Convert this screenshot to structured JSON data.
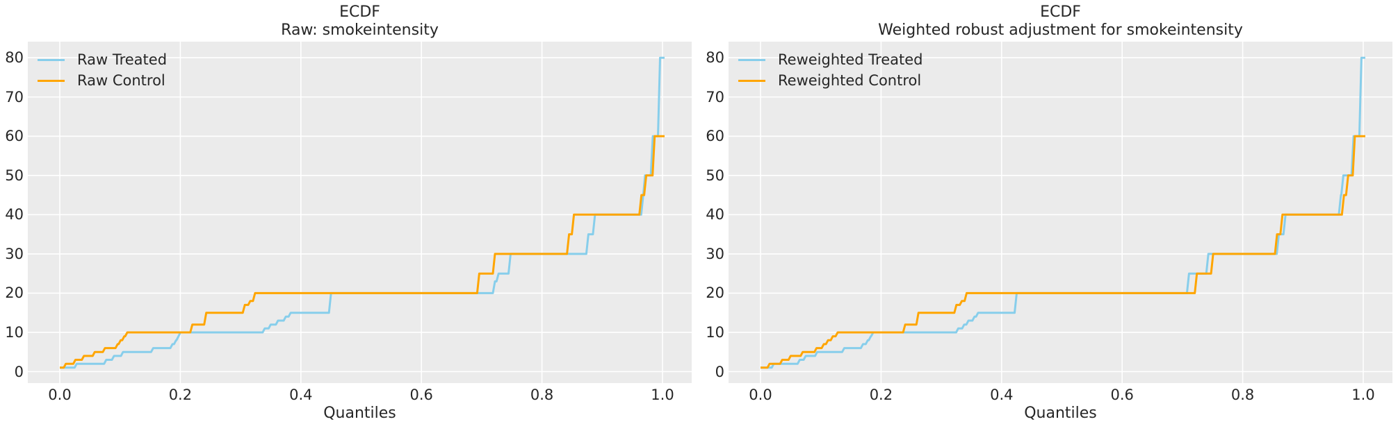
{
  "figure": {
    "background": "#ffffff",
    "plot_background": "#ebebeb",
    "grid_color": "#ffffff",
    "text_color": "#262626",
    "treated_color": "#87ceeb",
    "control_color": "#ffa500"
  },
  "chart_data": [
    {
      "type": "line",
      "subtype": "quantile-step-ecdf",
      "title": "ECDF",
      "subtitle": "Raw: smokeintensity",
      "xlabel": "Quantiles",
      "xlim": [
        -0.05,
        1.05
      ],
      "ylim": [
        -4,
        84
      ],
      "x_ticks": [
        0.0,
        0.2,
        0.4,
        0.6,
        0.8,
        1.0
      ],
      "x_tick_labels": [
        "0.0",
        "0.2",
        "0.4",
        "0.6",
        "0.8",
        "1.0"
      ],
      "y_ticks": [
        0,
        10,
        20,
        30,
        40,
        50,
        60,
        70,
        80
      ],
      "y_tick_labels": [
        "0",
        "10",
        "20",
        "30",
        "40",
        "50",
        "60",
        "70",
        "80"
      ],
      "grid": true,
      "legend_position": "upper-left",
      "series": [
        {
          "name": "Raw Treated",
          "color": "#87ceeb",
          "steps": [
            [
              0.0,
              1
            ],
            [
              0.028,
              2
            ],
            [
              0.077,
              3
            ],
            [
              0.09,
              4
            ],
            [
              0.105,
              5
            ],
            [
              0.155,
              6
            ],
            [
              0.187,
              7
            ],
            [
              0.193,
              8
            ],
            [
              0.197,
              9
            ],
            [
              0.2,
              10
            ],
            [
              0.34,
              11
            ],
            [
              0.35,
              12
            ],
            [
              0.362,
              13
            ],
            [
              0.375,
              14
            ],
            [
              0.383,
              15
            ],
            [
              0.45,
              20
            ],
            [
              0.722,
              23
            ],
            [
              0.728,
              25
            ],
            [
              0.748,
              30
            ],
            [
              0.877,
              35
            ],
            [
              0.888,
              40
            ],
            [
              0.968,
              45
            ],
            [
              0.971,
              50
            ],
            [
              0.984,
              60
            ],
            [
              0.996,
              80
            ]
          ]
        },
        {
          "name": "Raw Control",
          "color": "#ffa500",
          "steps": [
            [
              0.0,
              1
            ],
            [
              0.01,
              2
            ],
            [
              0.026,
              3
            ],
            [
              0.04,
              4
            ],
            [
              0.058,
              5
            ],
            [
              0.075,
              6
            ],
            [
              0.096,
              7
            ],
            [
              0.101,
              8
            ],
            [
              0.107,
              9
            ],
            [
              0.112,
              10
            ],
            [
              0.22,
              12
            ],
            [
              0.243,
              15
            ],
            [
              0.307,
              17
            ],
            [
              0.316,
              18
            ],
            [
              0.324,
              20
            ],
            [
              0.696,
              25
            ],
            [
              0.722,
              30
            ],
            [
              0.845,
              35
            ],
            [
              0.853,
              40
            ],
            [
              0.965,
              45
            ],
            [
              0.973,
              50
            ],
            [
              0.987,
              60
            ]
          ]
        }
      ]
    },
    {
      "type": "line",
      "subtype": "quantile-step-ecdf",
      "title": "ECDF",
      "subtitle": "Weighted robust adjustment for smokeintensity",
      "xlabel": "Quantiles",
      "xlim": [
        -0.05,
        1.05
      ],
      "ylim": [
        -4,
        84
      ],
      "x_ticks": [
        0.0,
        0.2,
        0.4,
        0.6,
        0.8,
        1.0
      ],
      "x_tick_labels": [
        "0.0",
        "0.2",
        "0.4",
        "0.6",
        "0.8",
        "1.0"
      ],
      "y_ticks": [
        0,
        10,
        20,
        30,
        40,
        50,
        60,
        70,
        80
      ],
      "y_tick_labels": [
        "0",
        "10",
        "20",
        "30",
        "40",
        "50",
        "60",
        "70",
        "80"
      ],
      "grid": true,
      "legend_position": "upper-left",
      "series": [
        {
          "name": "Reweighted Treated",
          "color": "#87ceeb",
          "steps": [
            [
              0.0,
              1
            ],
            [
              0.022,
              2
            ],
            [
              0.065,
              3
            ],
            [
              0.075,
              4
            ],
            [
              0.094,
              5
            ],
            [
              0.139,
              6
            ],
            [
              0.17,
              7
            ],
            [
              0.178,
              8
            ],
            [
              0.183,
              9
            ],
            [
              0.187,
              10
            ],
            [
              0.328,
              11
            ],
            [
              0.338,
              12
            ],
            [
              0.345,
              13
            ],
            [
              0.355,
              14
            ],
            [
              0.361,
              15
            ],
            [
              0.425,
              20
            ],
            [
              0.711,
              25
            ],
            [
              0.743,
              30
            ],
            [
              0.86,
              35
            ],
            [
              0.871,
              40
            ],
            [
              0.963,
              45
            ],
            [
              0.967,
              50
            ],
            [
              0.984,
              60
            ],
            [
              0.997,
              80
            ]
          ]
        },
        {
          "name": "Reweighted Control",
          "color": "#ffa500",
          "steps": [
            [
              0.0,
              1
            ],
            [
              0.015,
              2
            ],
            [
              0.036,
              3
            ],
            [
              0.05,
              4
            ],
            [
              0.07,
              5
            ],
            [
              0.093,
              6
            ],
            [
              0.105,
              7
            ],
            [
              0.112,
              8
            ],
            [
              0.12,
              9
            ],
            [
              0.128,
              10
            ],
            [
              0.24,
              12
            ],
            [
              0.262,
              15
            ],
            [
              0.325,
              17
            ],
            [
              0.334,
              18
            ],
            [
              0.342,
              20
            ],
            [
              0.724,
              25
            ],
            [
              0.751,
              30
            ],
            [
              0.857,
              35
            ],
            [
              0.866,
              40
            ],
            [
              0.968,
              45
            ],
            [
              0.975,
              50
            ],
            [
              0.986,
              60
            ]
          ]
        }
      ]
    }
  ]
}
